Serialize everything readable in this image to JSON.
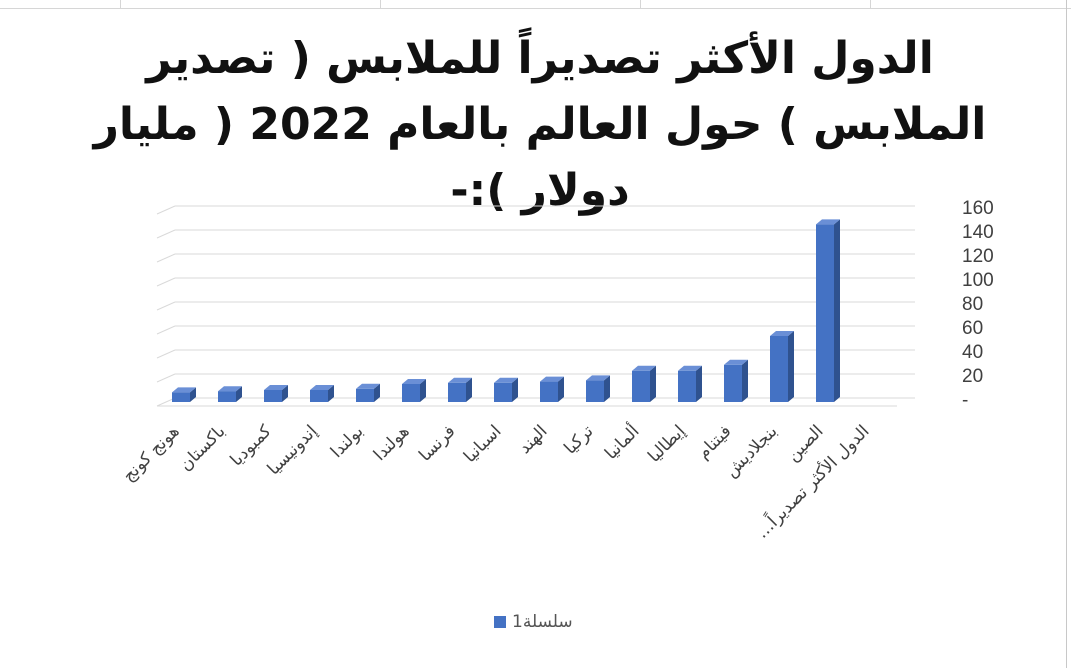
{
  "chart_data": {
    "type": "bar",
    "title": "الدول الأكثر تصديراً للملابس ( تصدير الملابس ) حول العالم بالعام 2022 ( مليار دولار ):-",
    "categories": [
      "الدول الأكثر تصديراً…",
      "الصين",
      "بنجلاديش",
      "فيتنام",
      "إيطاليا",
      "ألمانيا",
      "تركيا",
      "الهند",
      "اسبانيا",
      "فرنسا",
      "هولندا",
      "بولندا",
      "إندونيسيا",
      "كمبوديا",
      "باكستان",
      "هونج كونج"
    ],
    "series": [
      {
        "name": "سلسلة1",
        "color": "#4472c4",
        "values": [
          null,
          148,
          55,
          31,
          26,
          26,
          18,
          17,
          16,
          16,
          15,
          11,
          10,
          10,
          9,
          8
        ]
      }
    ],
    "y_ticks": [
      "-",
      "20",
      "40",
      "60",
      "80",
      "100",
      "120",
      "140",
      "160"
    ],
    "ylim": [
      0,
      160
    ],
    "grid": true,
    "legend_position": "bottom",
    "bar_style": "3d-column"
  },
  "legend": {
    "label": "سلسلة1"
  }
}
